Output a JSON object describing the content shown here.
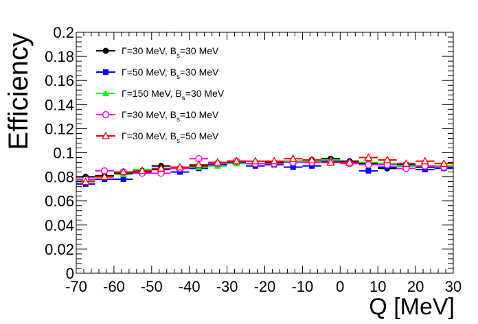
{
  "chart_data": {
    "type": "scatter",
    "title": "",
    "xlabel": "Q [MeV]",
    "ylabel": "Efficiency",
    "xlim": [
      -70,
      30
    ],
    "ylim": [
      0,
      0.2
    ],
    "x_ticks": [
      "-70",
      "-60",
      "-50",
      "-40",
      "-30",
      "-20",
      "-10",
      "0",
      "10",
      "20",
      "30"
    ],
    "y_ticks": [
      "0",
      "0.02",
      "0.04",
      "0.06",
      "0.08",
      "0.1",
      "0.12",
      "0.14",
      "0.16",
      "0.18",
      "0.2"
    ],
    "bin_width": 5,
    "grid": false,
    "legend_position": "top-left",
    "x": [
      -67.5,
      -62.5,
      -57.5,
      -52.5,
      -47.5,
      -42.5,
      -37.5,
      -32.5,
      -27.5,
      -22.5,
      -17.5,
      -12.5,
      -7.5,
      -2.5,
      2.5,
      7.5,
      12.5,
      17.5,
      22.5,
      27.5
    ],
    "series": [
      {
        "name": "Γ=30 MeV, B_s=30 MeV",
        "legend_prefix": "Γ=30 MeV, B",
        "legend_sub": "s",
        "legend_suffix": "=30 MeV",
        "color": "#000000",
        "marker": "filled-circle",
        "values": [
          0.08,
          0.081,
          0.083,
          0.085,
          0.089,
          0.087,
          0.089,
          0.09,
          0.093,
          0.091,
          0.092,
          0.093,
          0.094,
          0.095,
          0.093,
          0.091,
          0.087,
          0.089,
          0.088,
          0.089
        ]
      },
      {
        "name": "Γ=50 MeV, B_s=30 MeV",
        "legend_prefix": "Γ=50 MeV, B",
        "legend_sub": "s",
        "legend_suffix": "=30 MeV",
        "color": "#0000ff",
        "marker": "filled-square",
        "values": [
          0.074,
          0.078,
          0.078,
          0.084,
          0.086,
          0.084,
          0.087,
          0.09,
          0.092,
          0.089,
          0.09,
          0.088,
          0.089,
          0.093,
          0.092,
          0.085,
          0.088,
          0.09,
          0.086,
          0.087
        ]
      },
      {
        "name": "Γ=150 MeV, B_s=30 MeV",
        "legend_prefix": "Γ=150 MeV, B",
        "legend_sub": "s",
        "legend_suffix": "=30 MeV",
        "color": "#00ff00",
        "marker": "filled-triangle",
        "values": [
          0.077,
          0.08,
          0.082,
          0.086,
          0.087,
          0.087,
          0.088,
          0.089,
          0.091,
          0.091,
          0.091,
          0.093,
          0.093,
          0.094,
          0.092,
          0.092,
          0.091,
          0.089,
          0.089,
          0.089
        ]
      },
      {
        "name": "Γ=30 MeV, B_s=10 MeV",
        "legend_prefix": "Γ=30 MeV, B",
        "legend_sub": "s",
        "legend_suffix": "=10 MeV",
        "color": "#ff00ff",
        "marker": "open-circle",
        "values": [
          0.078,
          0.085,
          0.084,
          0.083,
          0.083,
          0.087,
          0.095,
          0.091,
          0.093,
          0.091,
          0.091,
          0.092,
          0.092,
          0.092,
          0.091,
          0.09,
          0.09,
          0.087,
          0.089,
          0.088
        ]
      },
      {
        "name": "Γ=30 MeV, B_s=50 MeV",
        "legend_prefix": "Γ=30 MeV, B",
        "legend_sub": "s",
        "legend_suffix": "=50 MeV",
        "color": "#ff0000",
        "marker": "open-triangle",
        "values": [
          0.076,
          0.08,
          0.084,
          0.085,
          0.087,
          0.088,
          0.09,
          0.092,
          0.093,
          0.093,
          0.093,
          0.095,
          0.094,
          0.092,
          0.092,
          0.096,
          0.094,
          0.091,
          0.093,
          0.091
        ]
      }
    ]
  }
}
